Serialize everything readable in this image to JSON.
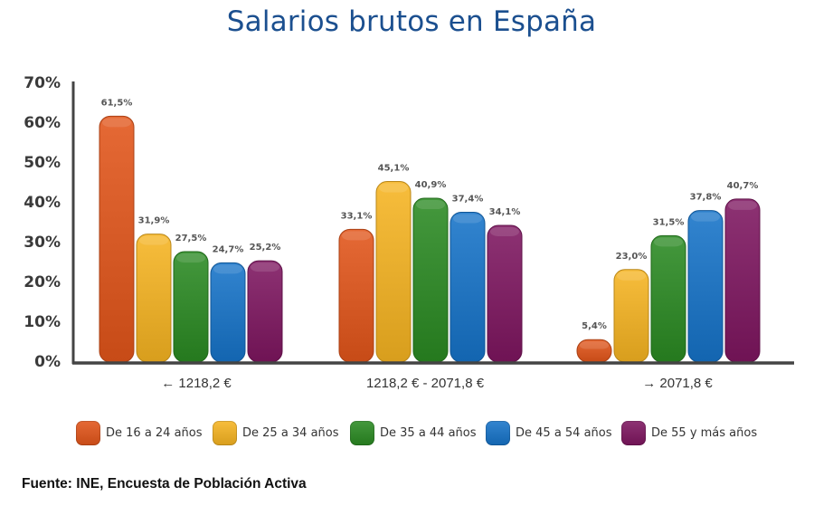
{
  "chart_data": {
    "type": "bar",
    "title": "Salarios brutos en España",
    "xlabel": "",
    "ylabel": "",
    "ylim": [
      0,
      70
    ],
    "yticks": [
      "0%",
      "10%",
      "20%",
      "30%",
      "40%",
      "50%",
      "60%",
      "70%"
    ],
    "categories": [
      "← 1218,2 €",
      "1218,2 € - 2071,8 €",
      "→ 2071,8 €"
    ],
    "series": [
      {
        "name": "De 16 a 24 años",
        "color": "#e2551a",
        "values": [
          61.5,
          33.1,
          5.4
        ],
        "labels": [
          "61,5%",
          "33,1%",
          "5,4%"
        ]
      },
      {
        "name": "De 25 a 34 años",
        "color": "#f6b421",
        "values": [
          31.9,
          45.1,
          23.0
        ],
        "labels": [
          "31,9%",
          "45,1%",
          "23,0%"
        ]
      },
      {
        "name": "De 35 a 44 años",
        "color": "#2a8a22",
        "values": [
          27.5,
          40.9,
          31.5
        ],
        "labels": [
          "27,5%",
          "40,9%",
          "31,5%"
        ]
      },
      {
        "name": "De 45 a 54 años",
        "color": "#1673c8",
        "values": [
          24.7,
          37.4,
          37.8
        ],
        "labels": [
          "24,7%",
          "37,4%",
          "37,8%"
        ]
      },
      {
        "name": "De 55 y más años",
        "color": "#7e1660",
        "values": [
          25.2,
          34.1,
          40.7
        ],
        "labels": [
          "25,2%",
          "34,1%",
          "40,7%"
        ]
      }
    ],
    "legend_position": "bottom",
    "grid": false
  },
  "footer": {
    "source": "Fuente: INE, Encuesta de Población Activa"
  }
}
